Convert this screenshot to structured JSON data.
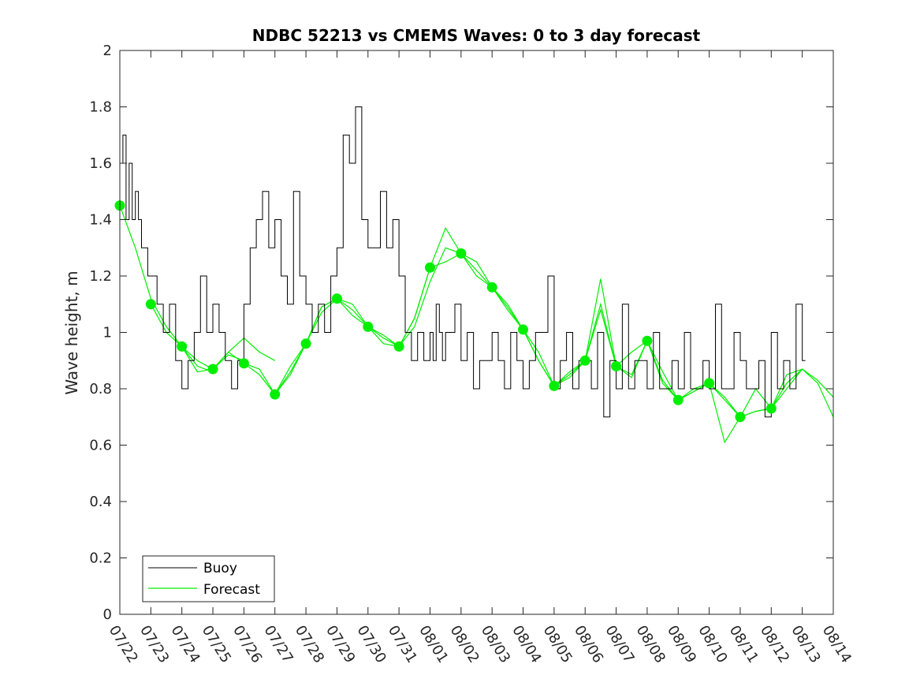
{
  "chart_data": {
    "type": "line",
    "title": "NDBC 52213 vs CMEMS Waves: 0 to 3 day forecast",
    "xlabel": "",
    "ylabel": "Wave height, m",
    "ylim": [
      0,
      2
    ],
    "yticks": [
      0,
      0.2,
      0.4,
      0.6,
      0.8,
      1,
      1.2,
      1.4,
      1.6,
      1.8,
      2
    ],
    "ytick_labels": [
      "0",
      "0.2",
      "0.4",
      "0.6",
      "0.8",
      "1",
      "1.2",
      "1.4",
      "1.6",
      "1.8",
      "2"
    ],
    "xtick_labels": [
      "07/22",
      "07/23",
      "07/24",
      "07/25",
      "07/26",
      "07/27",
      "07/28",
      "07/29",
      "07/30",
      "07/31",
      "08/01",
      "08/02",
      "08/03",
      "08/04",
      "08/05",
      "08/06",
      "08/07",
      "08/08",
      "08/09",
      "08/10",
      "08/11",
      "08/12",
      "08/13",
      "08/14"
    ],
    "grid": false,
    "legend_location": "bottom-left",
    "colors": {
      "buoy": "#000000",
      "forecast": "#00ee00"
    },
    "series": [
      {
        "name": "Buoy",
        "x": [
          0,
          0.1,
          0.2,
          0.3,
          0.4,
          0.5,
          0.6,
          0.7,
          0.8,
          0.9,
          1.0,
          1.2,
          1.4,
          1.6,
          1.8,
          2.0,
          2.2,
          2.4,
          2.6,
          2.8,
          3.0,
          3.2,
          3.4,
          3.6,
          3.8,
          4.0,
          4.2,
          4.4,
          4.6,
          4.8,
          5.0,
          5.2,
          5.4,
          5.6,
          5.8,
          6.0,
          6.2,
          6.4,
          6.6,
          6.8,
          7.0,
          7.2,
          7.4,
          7.6,
          7.8,
          8.0,
          8.2,
          8.4,
          8.6,
          8.8,
          9.0,
          9.2,
          9.4,
          9.6,
          9.8,
          10.0,
          10.1,
          10.2,
          10.3,
          10.4,
          10.5,
          10.6,
          10.8,
          11.0,
          11.2,
          11.4,
          11.6,
          11.8,
          12.0,
          12.2,
          12.4,
          12.6,
          12.8,
          13.0,
          13.2,
          13.4,
          13.6,
          13.8,
          14.0,
          14.2,
          14.4,
          14.6,
          14.8,
          15.0,
          15.2,
          15.4,
          15.6,
          15.8,
          16.0,
          16.2,
          16.4,
          16.6,
          16.8,
          17.0,
          17.2,
          17.4,
          17.6,
          17.8,
          18.0,
          18.2,
          18.4,
          18.6,
          18.8,
          19.0,
          19.2,
          19.4,
          19.6,
          19.8,
          20.0,
          20.2,
          20.4,
          20.6,
          20.8,
          21.0,
          21.2,
          21.4,
          21.6,
          21.8,
          22.0,
          22.1
        ],
        "values": [
          1.6,
          1.7,
          1.4,
          1.6,
          1.4,
          1.5,
          1.4,
          1.3,
          1.3,
          1.2,
          1.2,
          1.1,
          1.0,
          1.1,
          0.9,
          0.8,
          0.9,
          1.0,
          1.2,
          1.0,
          1.1,
          1.0,
          0.9,
          0.8,
          0.9,
          1.1,
          1.3,
          1.4,
          1.5,
          1.3,
          1.4,
          1.2,
          1.1,
          1.5,
          1.2,
          1.1,
          1.0,
          1.1,
          1.0,
          1.2,
          1.3,
          1.7,
          1.6,
          1.8,
          1.4,
          1.3,
          1.3,
          1.5,
          1.3,
          1.4,
          1.2,
          1.0,
          0.9,
          1.0,
          0.9,
          1.0,
          0.9,
          1.1,
          1.0,
          0.9,
          1.0,
          1.0,
          1.1,
          0.9,
          1.0,
          0.8,
          0.9,
          0.9,
          1.0,
          0.9,
          0.8,
          1.0,
          0.9,
          0.8,
          0.9,
          1.0,
          1.0,
          1.2,
          0.8,
          0.9,
          1.0,
          0.8,
          0.9,
          0.9,
          0.8,
          1.0,
          0.7,
          0.9,
          0.8,
          1.1,
          0.8,
          0.9,
          0.9,
          0.8,
          1.0,
          0.8,
          0.8,
          0.9,
          0.8,
          1.0,
          0.8,
          0.8,
          0.9,
          0.8,
          1.1,
          0.8,
          0.8,
          1.0,
          0.9,
          0.8,
          0.8,
          0.9,
          0.7,
          1.0,
          0.8,
          0.9,
          0.8,
          1.1,
          0.9,
          0.9
        ]
      },
      {
        "name": "Forecast",
        "x": [
          0,
          1,
          2,
          3,
          4,
          5,
          6,
          7,
          8,
          9,
          10,
          11,
          12,
          13,
          14,
          15,
          16,
          17,
          18,
          19,
          20,
          21
        ],
        "values": [
          1.45,
          1.1,
          0.95,
          0.87,
          0.89,
          0.78,
          0.96,
          1.12,
          1.02,
          0.95,
          1.23,
          1.28,
          1.16,
          1.01,
          0.81,
          0.9,
          0.88,
          0.97,
          0.76,
          0.82,
          0.7,
          0.73
        ]
      }
    ],
    "forecast_runs": [
      {
        "x": [
          0,
          0.5,
          1,
          1.5,
          2,
          2.5,
          3
        ],
        "values": [
          1.45,
          1.3,
          1.12,
          1.02,
          0.95,
          0.88,
          0.86
        ]
      },
      {
        "x": [
          1,
          1.5,
          2,
          2.5,
          3,
          3.5,
          4
        ],
        "values": [
          1.1,
          1.0,
          0.95,
          0.9,
          0.87,
          0.92,
          0.9
        ]
      },
      {
        "x": [
          2,
          2.5,
          3,
          3.5,
          4,
          4.5,
          5
        ],
        "values": [
          0.95,
          0.86,
          0.87,
          0.93,
          0.98,
          0.93,
          0.9
        ]
      },
      {
        "x": [
          3,
          3.5,
          4,
          4.5,
          5,
          5.5,
          6
        ],
        "values": [
          0.87,
          0.93,
          0.89,
          0.87,
          0.78,
          0.85,
          0.96
        ]
      },
      {
        "x": [
          4,
          4.5,
          5,
          5.5,
          6,
          6.5,
          7
        ],
        "values": [
          0.89,
          0.85,
          0.78,
          0.86,
          0.96,
          1.07,
          1.12
        ]
      },
      {
        "x": [
          5,
          5.5,
          6,
          6.5,
          7,
          7.5,
          8
        ],
        "values": [
          0.78,
          0.88,
          0.96,
          1.09,
          1.12,
          1.1,
          1.02
        ]
      },
      {
        "x": [
          6,
          6.5,
          7,
          7.5,
          8,
          8.5,
          9
        ],
        "values": [
          0.96,
          1.09,
          1.12,
          1.08,
          1.02,
          0.96,
          0.95
        ]
      },
      {
        "x": [
          7,
          7.5,
          8,
          8.5,
          9,
          9.5,
          10
        ],
        "values": [
          1.12,
          1.06,
          1.02,
          0.98,
          0.95,
          1.05,
          1.23
        ]
      },
      {
        "x": [
          8,
          8.5,
          9,
          9.5,
          10,
          10.5,
          11
        ],
        "values": [
          1.02,
          0.99,
          0.95,
          1.02,
          1.18,
          1.3,
          1.28
        ]
      },
      {
        "x": [
          9,
          9.5,
          10,
          10.5,
          11,
          11.5,
          12
        ],
        "values": [
          0.95,
          1.05,
          1.23,
          1.25,
          1.28,
          1.22,
          1.16
        ]
      },
      {
        "x": [
          10,
          10.5,
          11,
          11.5,
          12,
          12.5,
          13
        ],
        "values": [
          1.23,
          1.37,
          1.28,
          1.25,
          1.16,
          1.1,
          1.01
        ]
      },
      {
        "x": [
          11,
          11.5,
          12,
          12.5,
          13,
          13.5,
          14
        ],
        "values": [
          1.28,
          1.2,
          1.16,
          1.08,
          1.01,
          0.9,
          0.81
        ]
      },
      {
        "x": [
          12,
          12.5,
          13,
          13.5,
          14,
          14.5,
          15
        ],
        "values": [
          1.16,
          1.09,
          1.01,
          0.93,
          0.81,
          0.85,
          0.9
        ]
      },
      {
        "x": [
          13,
          13.5,
          14,
          14.5,
          15,
          15.5,
          16
        ],
        "values": [
          1.01,
          0.9,
          0.81,
          0.86,
          0.9,
          1.1,
          0.88
        ]
      },
      {
        "x": [
          14,
          14.5,
          15,
          15.5,
          16,
          16.5,
          17
        ],
        "values": [
          0.81,
          0.84,
          0.9,
          1.19,
          0.88,
          0.93,
          0.97
        ]
      },
      {
        "x": [
          15,
          15.5,
          16,
          16.5,
          17,
          17.5,
          18
        ],
        "values": [
          0.9,
          1.08,
          0.88,
          0.85,
          0.97,
          0.82,
          0.76
        ]
      },
      {
        "x": [
          16,
          16.5,
          17,
          17.5,
          18,
          18.5,
          19
        ],
        "values": [
          0.88,
          0.84,
          0.97,
          0.86,
          0.76,
          0.8,
          0.82
        ]
      },
      {
        "x": [
          17,
          17.5,
          18,
          18.5,
          19,
          19.5,
          20
        ],
        "values": [
          0.97,
          0.83,
          0.76,
          0.79,
          0.82,
          0.76,
          0.7
        ]
      },
      {
        "x": [
          18,
          18.5,
          19,
          19.5,
          20,
          20.5,
          21
        ],
        "values": [
          0.76,
          0.79,
          0.82,
          0.61,
          0.7,
          0.72,
          0.73
        ]
      },
      {
        "x": [
          19,
          19.5,
          20,
          20.5,
          21,
          21.5,
          22
        ],
        "values": [
          0.82,
          0.77,
          0.7,
          0.72,
          0.73,
          0.8,
          0.87
        ]
      },
      {
        "x": [
          20,
          20.5,
          21,
          21.5,
          22,
          22.5,
          23
        ],
        "values": [
          0.7,
          0.8,
          0.73,
          0.82,
          0.87,
          0.83,
          0.77
        ]
      },
      {
        "x": [
          21,
          21.5,
          22,
          22.5,
          23
        ],
        "values": [
          0.73,
          0.85,
          0.87,
          0.82,
          0.7
        ]
      }
    ]
  }
}
